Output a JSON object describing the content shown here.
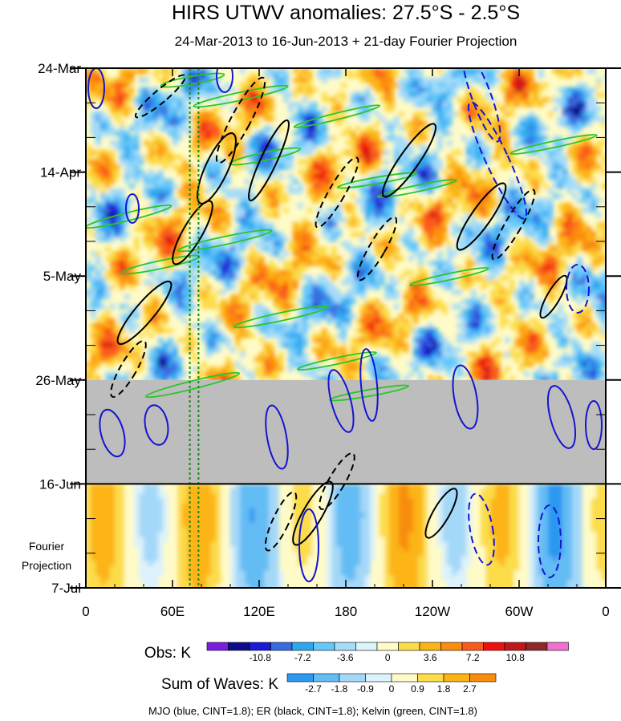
{
  "chart_data": {
    "type": "heatmap",
    "title": "HIRS UTWV anomalies: 27.5°S - 2.5°S",
    "subtitle": "24-Mar-2013 to 16-Jun-2013 + 21-day Fourier Projection",
    "x_ticks": [
      "0",
      "60E",
      "120E",
      "180",
      "120W",
      "60W",
      "0"
    ],
    "x_tick_lon": [
      0,
      60,
      120,
      180,
      240,
      300,
      360
    ],
    "y_ticks": [
      "24-Mar",
      "14-Apr",
      "5-May",
      "26-May",
      "16-Jun",
      "7-Jul"
    ],
    "y_tick_day": [
      0,
      21,
      42,
      63,
      84,
      105
    ],
    "y_range_days": [
      0,
      105
    ],
    "x_range_lon": [
      0,
      360
    ],
    "projection_label": [
      "Fourier",
      "Projection"
    ],
    "observed_end_day": 84,
    "missing_data_start_day": 63,
    "reference_lines_lon": [
      72,
      78
    ],
    "colorbars": [
      {
        "label": "Obs: K",
        "tick_labels": [
          "-10.8",
          "-7.2",
          "-3.6",
          "0",
          "3.6",
          "7.2",
          "10.8"
        ],
        "colors": [
          "#7a1fe0",
          "#0c0c8c",
          "#1a1ad8",
          "#3a6ae0",
          "#2ca8f0",
          "#66c8fa",
          "#a6dcf8",
          "#dcf4fc",
          "#fffbc8",
          "#fcdc48",
          "#fcb414",
          "#fc8c0c",
          "#fa5a1a",
          "#f01010",
          "#c01818",
          "#902828",
          "#f070d0"
        ]
      },
      {
        "label": "Sum of Waves: K",
        "tick_labels": [
          "-2.7",
          "-1.8",
          "-0.9",
          "0",
          "0.9",
          "1.8",
          "2.7"
        ],
        "colors": [
          "#2c98f0",
          "#64bcf4",
          "#a4d8f8",
          "#dcf2fc",
          "#fffbc8",
          "#fcdc48",
          "#fcb414",
          "#f88c0c"
        ]
      }
    ],
    "caption": "MJO (blue, CINT=1.8); ER (black, CINT=1.8); Kelvin (green, CINT=1.8)",
    "contour_colors": {
      "MJO": "#1414d2",
      "ER": "#000000",
      "Kelvin": "#28c828"
    },
    "missing_color": "#bdbdbd"
  }
}
